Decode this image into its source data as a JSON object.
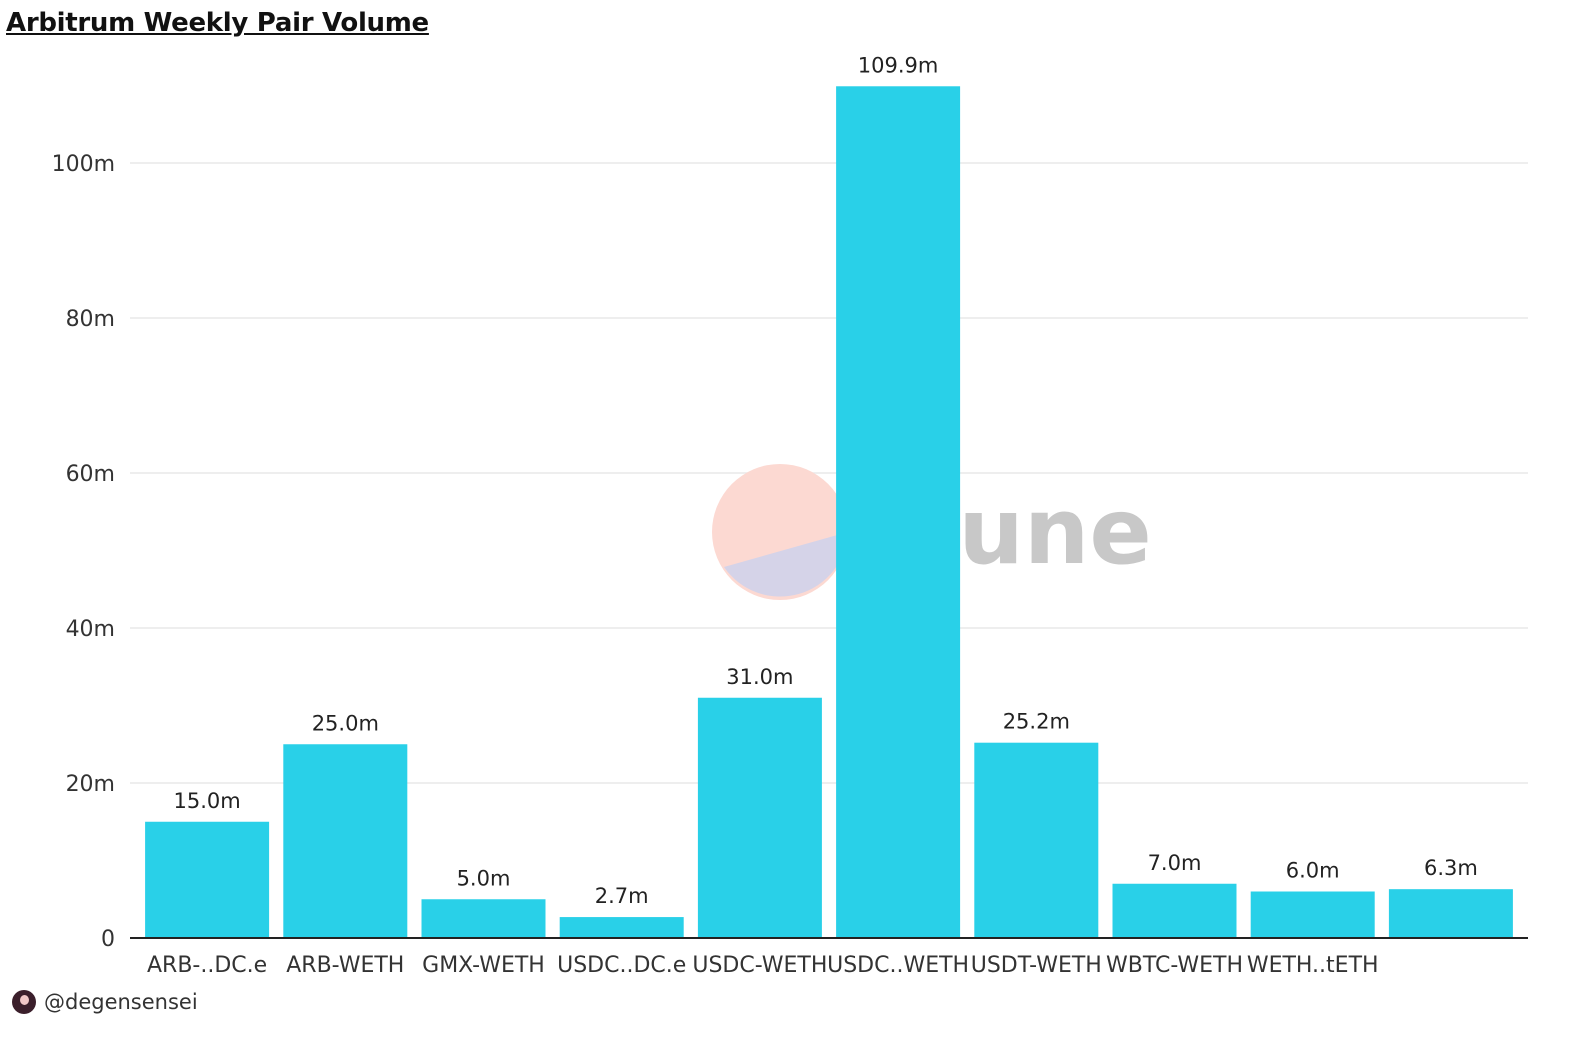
{
  "chart_data": {
    "type": "bar",
    "title": "Arbitrum Weekly Pair Volume",
    "xlabel": "",
    "ylabel": "",
    "categories": [
      "ARB-..DC.e",
      "ARB-WETH",
      "GMX-WETH",
      "USDC..DC.e",
      "USDC-WETH",
      "USDC..WETH",
      "USDT-WETH",
      "WBTC-WETH",
      "WETH..tETH",
      ""
    ],
    "values": [
      15.0,
      25.0,
      5.0,
      2.7,
      31.0,
      109.9,
      25.2,
      7.0,
      6.0,
      6.3
    ],
    "data_labels": [
      "15.0m",
      "25.0m",
      "5.0m",
      "2.7m",
      "31.0m",
      "109.9m",
      "25.2m",
      "7.0m",
      "6.0m",
      "6.3m"
    ],
    "y_ticks": [
      0,
      20,
      40,
      60,
      80,
      100
    ],
    "y_tick_labels": [
      "0",
      "20m",
      "40m",
      "60m",
      "80m",
      "100m"
    ],
    "ylim": [
      0,
      112
    ],
    "grid": true,
    "legend": "none",
    "bar_color": "#29d0e8"
  },
  "watermark": {
    "text": "Dune"
  },
  "footer": {
    "handle": "@degensensei"
  }
}
